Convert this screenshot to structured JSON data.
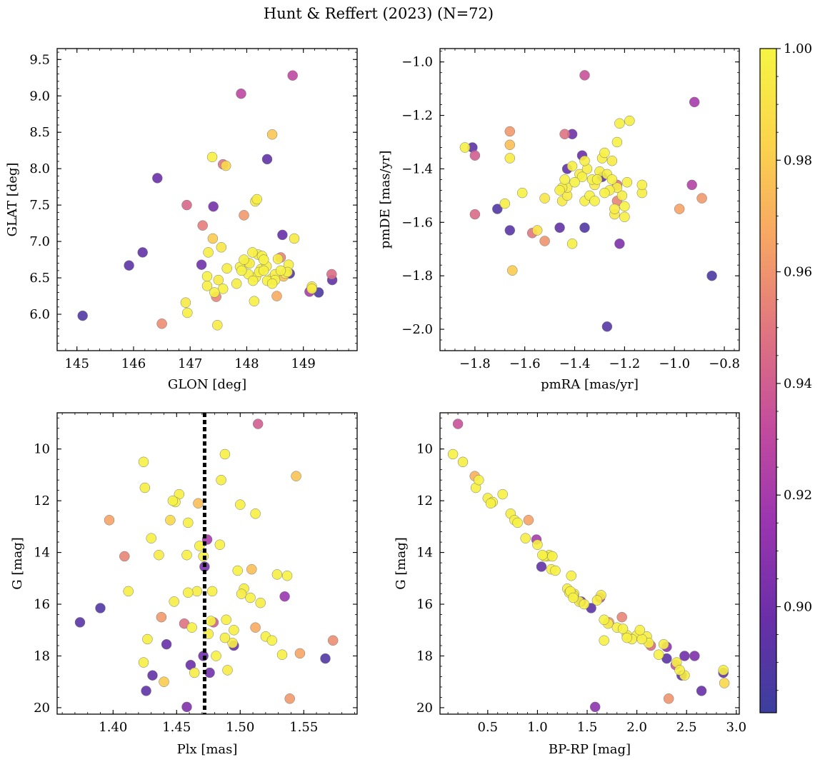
{
  "figure": {
    "title": "Hunt & Reffert (2023) (N=72)",
    "colorbar": {
      "range": [
        0.881,
        1.0
      ],
      "ticks": [
        0.9,
        0.92,
        0.94,
        0.96,
        0.98,
        1.0
      ],
      "tick_labels": [
        "0.90",
        "0.92",
        "0.94",
        "0.96",
        "0.98",
        "1.00"
      ],
      "colormap": "plasma (truncated)",
      "colors": [
        "#3b3f9e",
        "#6a2fa8",
        "#9a35b0",
        "#c34b9e",
        "#e07480",
        "#f7a564",
        "#fbd44c",
        "#f5f542"
      ]
    }
  },
  "chart_data": [
    {
      "type": "scatter",
      "name": "glon-glat",
      "title": "",
      "xlabel": "GLON [deg]",
      "ylabel": "GLAT [deg]",
      "xlim": [
        144.65,
        149.95
      ],
      "ylim": [
        5.5,
        9.65
      ],
      "xticks": [
        145,
        146,
        147,
        148,
        149
      ],
      "xtick_labels": [
        "145",
        "146",
        "147",
        "148",
        "149"
      ],
      "yticks": [
        6.0,
        6.5,
        7.0,
        7.5,
        8.0,
        8.5,
        9.0,
        9.5
      ],
      "ytick_labels": [
        "6.0",
        "6.5",
        "7.0",
        "7.5",
        "8.0",
        "8.5",
        "9.0",
        "9.5"
      ],
      "x": [
        145.1,
        145.92,
        146.16,
        146.42,
        147.2,
        147.41,
        148.36,
        148.63,
        148.76,
        149.27,
        149.51,
        147.22,
        149.11,
        147.58,
        146.94,
        148.6,
        146.5,
        147.95,
        147.63,
        148.45,
        148.53,
        149.5,
        147.4,
        147.46,
        148.81,
        147.39,
        147.48,
        147.55,
        147.3,
        147.32,
        146.92,
        146.95,
        147.58,
        147.82,
        147.91,
        148.03,
        148.11,
        148.16,
        148.22,
        148.25,
        148.3,
        148.36,
        148.44,
        148.5,
        148.55,
        148.6,
        148.68,
        148.74,
        148.84,
        149.15,
        148.13,
        148.18,
        147.43,
        147.88,
        147.9,
        148.27,
        148.2,
        148.1,
        147.3,
        148.0,
        148.35,
        148.45,
        148.72,
        147.65,
        148.5,
        149.15,
        148.3,
        148.15,
        147.95,
        148.05,
        148.65,
        147.5
      ],
      "y": [
        5.98,
        6.67,
        6.85,
        7.87,
        6.68,
        7.48,
        8.13,
        7.09,
        6.56,
        6.3,
        6.47,
        7.22,
        6.31,
        8.06,
        7.5,
        6.78,
        5.87,
        7.36,
        8.04,
        8.47,
        6.25,
        6.55,
        7.04,
        6.24,
        9.28,
        8.16,
        5.85,
        6.92,
        6.39,
        6.85,
        6.16,
        6.02,
        6.35,
        6.42,
        6.6,
        6.55,
        6.46,
        6.51,
        6.58,
        6.62,
        6.75,
        6.46,
        6.49,
        6.55,
        6.76,
        6.6,
        6.56,
        6.68,
        7.04,
        6.38,
        6.18,
        7.58,
        6.3,
        6.65,
        9.03,
        6.8,
        6.82,
        6.85,
        6.52,
        6.7,
        6.66,
        6.42,
        6.58,
        6.63,
        6.47,
        6.35,
        6.6,
        7.55,
        6.75,
        6.7,
        6.52,
        6.47
      ],
      "c": [
        0.889,
        0.893,
        0.895,
        0.898,
        0.9,
        0.902,
        0.894,
        0.897,
        0.891,
        0.887,
        0.895,
        0.952,
        0.92,
        0.948,
        0.943,
        0.955,
        0.958,
        0.962,
        0.985,
        0.978,
        0.968,
        0.946,
        0.98,
        0.955,
        0.93,
        0.997,
        0.995,
        0.993,
        0.997,
        0.996,
        0.994,
        0.997,
        0.998,
        0.996,
        0.999,
        0.997,
        0.998,
        0.996,
        0.998,
        0.997,
        0.999,
        0.998,
        0.996,
        0.997,
        0.995,
        0.998,
        0.996,
        0.997,
        0.995,
        0.993,
        0.997,
        0.996,
        0.998,
        0.997,
        0.929,
        0.998,
        0.996,
        0.997,
        0.998,
        0.996,
        0.997,
        0.998,
        0.997,
        0.996,
        0.997,
        0.996,
        0.998,
        0.994,
        0.997,
        0.996,
        0.975,
        0.995
      ]
    },
    {
      "type": "scatter",
      "name": "pmra-pmde",
      "title": "",
      "xlabel": "pmRA [mas/yr]",
      "ylabel": "pmDE [mas/yr]",
      "xlim": [
        -1.94,
        -0.74
      ],
      "ylim": [
        -2.08,
        -0.95
      ],
      "xticks": [
        -1.8,
        -1.6,
        -1.4,
        -1.2,
        -1.0,
        -0.8
      ],
      "xtick_labels": [
        "−1.8",
        "−1.6",
        "−1.4",
        "−1.2",
        "−1.0",
        "−0.8"
      ],
      "yticks": [
        -2.0,
        -1.8,
        -1.6,
        -1.4,
        -1.2,
        -1.0
      ],
      "ytick_labels": [
        "−2.0",
        "−1.8",
        "−1.6",
        "−1.4",
        "−1.2",
        "−1.0"
      ],
      "x": [
        -1.81,
        -1.71,
        -1.66,
        -1.46,
        -1.41,
        -1.43,
        -1.37,
        -1.36,
        -1.29,
        -1.27,
        -1.22,
        -0.85,
        -0.92,
        -0.93,
        -1.36,
        -1.8,
        -1.8,
        -1.44,
        -1.57,
        -1.52,
        -1.66,
        -1.66,
        -1.23,
        -1.23,
        -0.89,
        -0.98,
        -1.84,
        -1.66,
        -1.65,
        -1.61,
        -1.68,
        -1.55,
        -1.52,
        -1.46,
        -1.45,
        -1.44,
        -1.43,
        -1.41,
        -1.4,
        -1.38,
        -1.37,
        -1.36,
        -1.35,
        -1.34,
        -1.33,
        -1.32,
        -1.31,
        -1.3,
        -1.29,
        -1.28,
        -1.27,
        -1.26,
        -1.25,
        -1.24,
        -1.23,
        -1.22,
        -1.21,
        -1.2,
        -1.19,
        -1.18,
        -1.13,
        -1.13,
        -1.25,
        -1.23,
        -1.41,
        -1.43,
        -1.45,
        -1.32,
        -1.36,
        -1.24,
        -1.28,
        -1.2
      ],
      "y": [
        -1.32,
        -1.55,
        -1.63,
        -1.62,
        -1.27,
        -1.4,
        -1.35,
        -1.62,
        -1.43,
        -1.99,
        -1.68,
        -1.8,
        -1.15,
        -1.46,
        -1.05,
        -1.35,
        -1.57,
        -1.27,
        -1.64,
        -1.67,
        -1.26,
        -1.31,
        -1.46,
        -1.52,
        -1.51,
        -1.55,
        -1.32,
        -1.36,
        -1.78,
        -1.49,
        -1.53,
        -1.63,
        -1.51,
        -1.48,
        -1.52,
        -1.44,
        -1.47,
        -1.39,
        -1.45,
        -1.42,
        -1.43,
        -1.37,
        -1.4,
        -1.5,
        -1.44,
        -1.46,
        -1.44,
        -1.41,
        -1.36,
        -1.34,
        -1.42,
        -1.48,
        -1.37,
        -1.57,
        -1.3,
        -1.23,
        -1.5,
        -1.54,
        -1.45,
        -1.22,
        -1.46,
        -1.49,
        -1.44,
        -1.47,
        -1.68,
        -1.5,
        -1.47,
        -1.52,
        -1.52,
        -1.55,
        -1.49,
        -1.58
      ],
      "c": [
        0.893,
        0.889,
        0.892,
        0.895,
        0.9,
        0.894,
        0.898,
        0.889,
        0.892,
        0.891,
        0.905,
        0.887,
        0.92,
        0.925,
        0.935,
        0.94,
        0.945,
        0.948,
        0.95,
        0.96,
        0.962,
        0.975,
        0.948,
        0.955,
        0.962,
        0.965,
        0.997,
        0.995,
        0.98,
        0.998,
        0.996,
        0.99,
        0.993,
        0.997,
        0.995,
        0.998,
        0.996,
        0.997,
        0.999,
        0.996,
        0.998,
        0.997,
        0.996,
        0.998,
        0.997,
        0.995,
        0.998,
        0.996,
        0.997,
        0.998,
        0.996,
        0.997,
        0.995,
        0.994,
        0.998,
        0.997,
        0.996,
        0.998,
        0.997,
        0.996,
        0.997,
        0.996,
        0.998,
        0.996,
        0.997,
        0.995,
        0.996,
        0.998,
        0.997,
        0.996,
        0.998,
        0.997
      ]
    },
    {
      "type": "scatter",
      "name": "plx-g",
      "title": "",
      "xlabel": "Plx [mas]",
      "ylabel": "G [mag]",
      "xlim": [
        1.356,
        1.592
      ],
      "ylim": [
        20.25,
        8.6
      ],
      "y_inverted": true,
      "vline": 1.472,
      "xticks": [
        1.4,
        1.45,
        1.5,
        1.55
      ],
      "xtick_labels": [
        "1.40",
        "1.45",
        "1.50",
        "1.55"
      ],
      "yticks": [
        10,
        12,
        14,
        16,
        18,
        20
      ],
      "ytick_labels": [
        "10",
        "12",
        "14",
        "16",
        "18",
        "20"
      ],
      "x": [
        1.374,
        1.39,
        1.426,
        1.431,
        1.442,
        1.461,
        1.471,
        1.472,
        1.458,
        1.476,
        1.495,
        1.567,
        1.535,
        1.474,
        1.514,
        1.397,
        1.409,
        1.438,
        1.447,
        1.467,
        1.479,
        1.512,
        1.539,
        1.547,
        1.573,
        1.544,
        1.424,
        1.425,
        1.43,
        1.436,
        1.44,
        1.445,
        1.448,
        1.452,
        1.456,
        1.459,
        1.462,
        1.466,
        1.468,
        1.471,
        1.475,
        1.478,
        1.481,
        1.485,
        1.488,
        1.49,
        1.494,
        1.498,
        1.5,
        1.503,
        1.508,
        1.512,
        1.516,
        1.52,
        1.525,
        1.529,
        1.533,
        1.537,
        1.488,
        1.489,
        1.484,
        1.427,
        1.424,
        1.412,
        1.449,
        1.458,
        1.464,
        1.477,
        1.495,
        1.501,
        1.509,
        1.459
      ],
      "y": [
        16.7,
        16.15,
        19.35,
        18.75,
        17.55,
        18.35,
        18.0,
        14.55,
        19.97,
        18.65,
        17.6,
        18.1,
        15.7,
        13.5,
        9.03,
        12.75,
        14.15,
        16.5,
        12.0,
        12.1,
        16.7,
        16.9,
        19.65,
        17.9,
        17.4,
        11.05,
        10.5,
        11.5,
        13.45,
        14.1,
        19.0,
        12.75,
        15.9,
        11.75,
        16.75,
        12.85,
        16.9,
        15.5,
        13.75,
        14.15,
        17.15,
        15.5,
        18.0,
        11.2,
        10.2,
        18.55,
        17.5,
        14.7,
        12.15,
        15.4,
        15.75,
        12.5,
        15.95,
        17.25,
        17.4,
        14.85,
        17.95,
        14.9,
        17.3,
        16.6,
        13.7,
        17.35,
        18.25,
        15.5,
        12.05,
        14.1,
        18.65,
        16.65,
        17.0,
        15.6,
        14.65,
        15.55
      ],
      "c": [
        0.892,
        0.889,
        0.894,
        0.895,
        0.897,
        0.898,
        0.9,
        0.903,
        0.905,
        0.9,
        0.898,
        0.889,
        0.915,
        0.92,
        0.94,
        0.965,
        0.955,
        0.962,
        0.999,
        0.975,
        0.94,
        0.968,
        0.962,
        0.966,
        0.958,
        0.977,
        0.998,
        0.996,
        0.997,
        0.995,
        0.98,
        0.985,
        0.996,
        0.997,
        0.948,
        0.997,
        0.998,
        0.996,
        0.997,
        0.998,
        0.996,
        0.997,
        0.998,
        0.996,
        0.997,
        0.995,
        0.996,
        0.998,
        0.997,
        0.996,
        0.998,
        0.997,
        0.996,
        0.997,
        0.998,
        0.996,
        0.997,
        0.998,
        0.996,
        0.997,
        0.998,
        0.996,
        0.997,
        0.996,
        0.998,
        0.997,
        0.996,
        0.998,
        0.997,
        0.996,
        0.975,
        0.997
      ]
    },
    {
      "type": "scatter",
      "name": "bprp-g",
      "title": "",
      "xlabel": "BP-RP [mag]",
      "ylabel": "G [mag]",
      "xlim": [
        0.02,
        3.03
      ],
      "ylim": [
        20.25,
        8.6
      ],
      "y_inverted": true,
      "xticks": [
        0.5,
        1.0,
        1.5,
        2.0,
        2.5,
        3.0
      ],
      "xtick_labels": [
        "0.5",
        "1.0",
        "1.5",
        "2.0",
        "2.5",
        "3.0"
      ],
      "yticks": [
        10,
        12,
        14,
        16,
        18,
        20
      ],
      "ytick_labels": [
        "10",
        "12",
        "14",
        "16",
        "18",
        "20"
      ],
      "x": [
        0.2,
        0.99,
        1.04,
        1.44,
        1.54,
        1.58,
        1.63,
        2.3,
        2.48,
        2.58,
        2.65,
        2.87,
        2.3,
        2.45,
        2.14,
        2.39,
        1.85,
        1.72,
        0.91,
        2.32,
        0.37,
        0.15,
        0.25,
        0.38,
        0.41,
        0.5,
        0.55,
        0.65,
        0.73,
        0.77,
        0.8,
        0.88,
        1.0,
        1.07,
        1.1,
        1.14,
        1.18,
        1.3,
        1.32,
        1.36,
        1.42,
        1.47,
        1.67,
        1.71,
        1.8,
        1.86,
        1.9,
        1.95,
        2.03,
        2.1,
        2.12,
        2.22,
        2.27,
        2.4,
        2.43,
        2.48,
        2.87,
        2.88,
        1.64,
        1.33,
        1.15,
        1.37,
        1.9,
        1.05,
        1.6,
        2.05,
        0.53,
        1.36,
        1.34,
        1.67,
        2.0,
        1.12
      ],
      "y": [
        9.03,
        13.5,
        14.55,
        15.9,
        16.15,
        19.97,
        15.75,
        18.1,
        18.0,
        18.0,
        19.35,
        18.65,
        17.65,
        18.75,
        17.6,
        18.35,
        16.5,
        16.7,
        12.75,
        19.65,
        11.05,
        10.2,
        10.5,
        11.5,
        11.2,
        11.9,
        12.05,
        11.75,
        12.5,
        12.75,
        12.85,
        13.45,
        13.7,
        14.15,
        14.15,
        14.65,
        14.7,
        15.4,
        15.55,
        15.75,
        15.9,
        16.0,
        16.6,
        16.75,
        16.9,
        16.95,
        17.2,
        17.35,
        17.0,
        17.25,
        17.5,
        17.95,
        17.55,
        18.25,
        18.55,
        18.75,
        18.55,
        19.05,
        15.65,
        15.5,
        14.15,
        15.6,
        17.3,
        14.1,
        15.85,
        17.35,
        12.1,
        15.65,
        14.9,
        17.4,
        17.2,
        14.1
      ],
      "c": [
        0.935,
        0.92,
        0.895,
        0.898,
        0.893,
        0.91,
        0.93,
        0.893,
        0.9,
        0.905,
        0.897,
        0.896,
        0.91,
        0.894,
        0.945,
        0.935,
        0.955,
        0.962,
        0.965,
        0.96,
        0.97,
        0.998,
        0.996,
        0.997,
        0.998,
        0.996,
        0.997,
        0.998,
        0.996,
        0.997,
        0.998,
        0.996,
        0.997,
        0.998,
        0.996,
        0.997,
        0.998,
        0.996,
        0.997,
        0.998,
        0.996,
        0.997,
        0.998,
        0.996,
        0.997,
        0.998,
        0.996,
        0.997,
        0.998,
        0.996,
        0.997,
        0.998,
        0.996,
        0.997,
        0.998,
        0.996,
        0.997,
        0.985,
        0.996,
        0.997,
        0.998,
        0.996,
        0.997,
        0.998,
        0.996,
        0.997,
        0.998,
        0.996,
        0.997,
        0.998,
        0.996,
        0.997
      ]
    }
  ]
}
